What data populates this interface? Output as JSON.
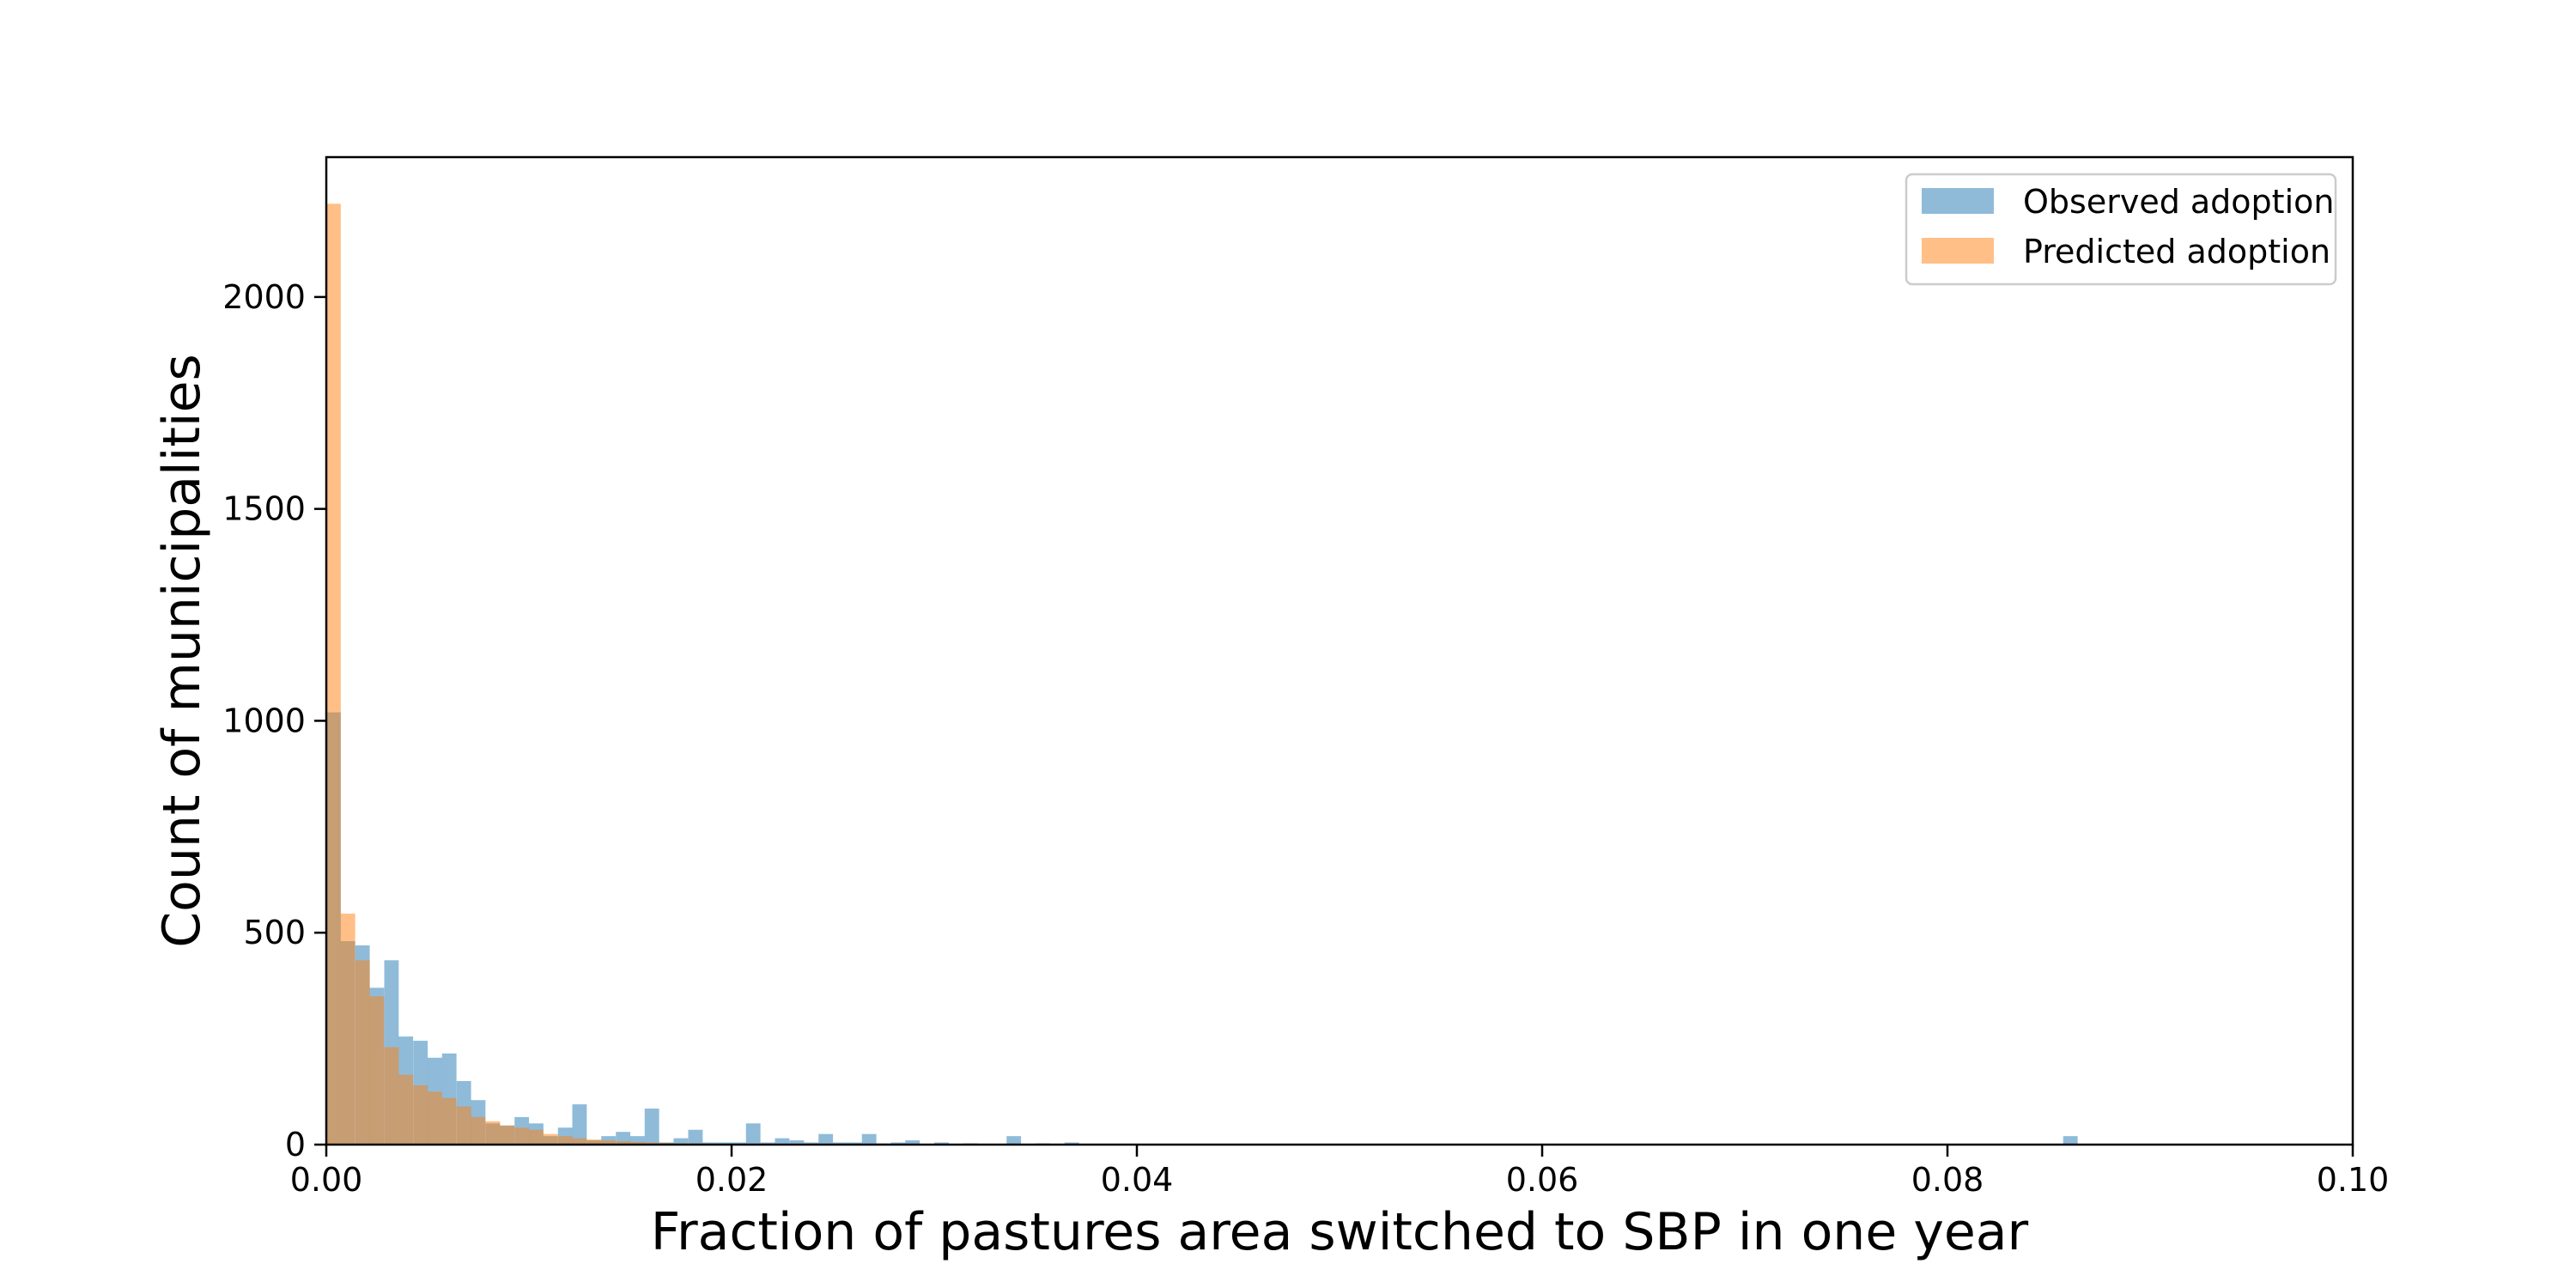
{
  "chart_data": {
    "type": "bar",
    "title": "",
    "xlabel": "Fraction of pastures area switched to SBP in one year",
    "ylabel": "Count of municipalities",
    "xlim": [
      0.0,
      0.1
    ],
    "ylim": [
      0,
      2330
    ],
    "x_ticks": [
      0.0,
      0.02,
      0.04,
      0.06,
      0.08,
      0.1
    ],
    "x_tick_labels": [
      "0.00",
      "0.02",
      "0.04",
      "0.06",
      "0.08",
      "0.10"
    ],
    "y_ticks": [
      0,
      500,
      1000,
      1500,
      2000
    ],
    "y_tick_labels": [
      "0",
      "500",
      "1000",
      "1500",
      "2000"
    ],
    "grid": false,
    "legend_position": "top-right",
    "bin_width": 0.0007143,
    "series": [
      {
        "name": "Observed adoption",
        "color": "#1f77b4",
        "opacity": 0.5,
        "bins": [
          {
            "x": 0.0,
            "y": 1020
          },
          {
            "x": 0.00071,
            "y": 480
          },
          {
            "x": 0.00143,
            "y": 470
          },
          {
            "x": 0.00214,
            "y": 370
          },
          {
            "x": 0.00286,
            "y": 435
          },
          {
            "x": 0.00357,
            "y": 255
          },
          {
            "x": 0.00429,
            "y": 245
          },
          {
            "x": 0.005,
            "y": 205
          },
          {
            "x": 0.00571,
            "y": 215
          },
          {
            "x": 0.00643,
            "y": 150
          },
          {
            "x": 0.00714,
            "y": 105
          },
          {
            "x": 0.00786,
            "y": 50
          },
          {
            "x": 0.00857,
            "y": 45
          },
          {
            "x": 0.00929,
            "y": 65
          },
          {
            "x": 0.01,
            "y": 50
          },
          {
            "x": 0.01071,
            "y": 20
          },
          {
            "x": 0.01143,
            "y": 40
          },
          {
            "x": 0.01214,
            "y": 95
          },
          {
            "x": 0.01286,
            "y": 10
          },
          {
            "x": 0.01357,
            "y": 20
          },
          {
            "x": 0.01429,
            "y": 30
          },
          {
            "x": 0.015,
            "y": 20
          },
          {
            "x": 0.01571,
            "y": 85
          },
          {
            "x": 0.01643,
            "y": 5
          },
          {
            "x": 0.01714,
            "y": 15
          },
          {
            "x": 0.01786,
            "y": 35
          },
          {
            "x": 0.01857,
            "y": 5
          },
          {
            "x": 0.01929,
            "y": 5
          },
          {
            "x": 0.02,
            "y": 5
          },
          {
            "x": 0.02071,
            "y": 50
          },
          {
            "x": 0.02143,
            "y": 5
          },
          {
            "x": 0.02214,
            "y": 15
          },
          {
            "x": 0.02286,
            "y": 10
          },
          {
            "x": 0.02357,
            "y": 5
          },
          {
            "x": 0.02429,
            "y": 25
          },
          {
            "x": 0.025,
            "y": 5
          },
          {
            "x": 0.02571,
            "y": 5
          },
          {
            "x": 0.02643,
            "y": 25
          },
          {
            "x": 0.02714,
            "y": 3
          },
          {
            "x": 0.02786,
            "y": 5
          },
          {
            "x": 0.02857,
            "y": 10
          },
          {
            "x": 0.03,
            "y": 5
          },
          {
            "x": 0.03143,
            "y": 3
          },
          {
            "x": 0.03357,
            "y": 20
          },
          {
            "x": 0.035,
            "y": 3
          },
          {
            "x": 0.03643,
            "y": 5
          },
          {
            "x": 0.08571,
            "y": 20
          }
        ]
      },
      {
        "name": "Predicted adoption",
        "color": "#ff7f0e",
        "opacity": 0.5,
        "bins": [
          {
            "x": 0.0,
            "y": 2220
          },
          {
            "x": 0.00071,
            "y": 545
          },
          {
            "x": 0.00143,
            "y": 435
          },
          {
            "x": 0.00214,
            "y": 350
          },
          {
            "x": 0.00286,
            "y": 230
          },
          {
            "x": 0.00357,
            "y": 165
          },
          {
            "x": 0.00429,
            "y": 140
          },
          {
            "x": 0.005,
            "y": 125
          },
          {
            "x": 0.00571,
            "y": 110
          },
          {
            "x": 0.00643,
            "y": 90
          },
          {
            "x": 0.00714,
            "y": 65
          },
          {
            "x": 0.00786,
            "y": 55
          },
          {
            "x": 0.00857,
            "y": 45
          },
          {
            "x": 0.00929,
            "y": 40
          },
          {
            "x": 0.01,
            "y": 35
          },
          {
            "x": 0.01071,
            "y": 25
          },
          {
            "x": 0.01143,
            "y": 20
          },
          {
            "x": 0.01214,
            "y": 15
          },
          {
            "x": 0.01286,
            "y": 12
          },
          {
            "x": 0.01357,
            "y": 10
          },
          {
            "x": 0.01429,
            "y": 8
          },
          {
            "x": 0.015,
            "y": 6
          },
          {
            "x": 0.01571,
            "y": 5
          },
          {
            "x": 0.01643,
            "y": 4
          },
          {
            "x": 0.01714,
            "y": 3
          },
          {
            "x": 0.01786,
            "y": 3
          },
          {
            "x": 0.01857,
            "y": 2
          },
          {
            "x": 0.01929,
            "y": 2
          },
          {
            "x": 0.02,
            "y": 2
          },
          {
            "x": 0.02071,
            "y": 2
          },
          {
            "x": 0.02143,
            "y": 1
          },
          {
            "x": 0.02214,
            "y": 1
          },
          {
            "x": 0.02286,
            "y": 1
          }
        ]
      }
    ]
  }
}
